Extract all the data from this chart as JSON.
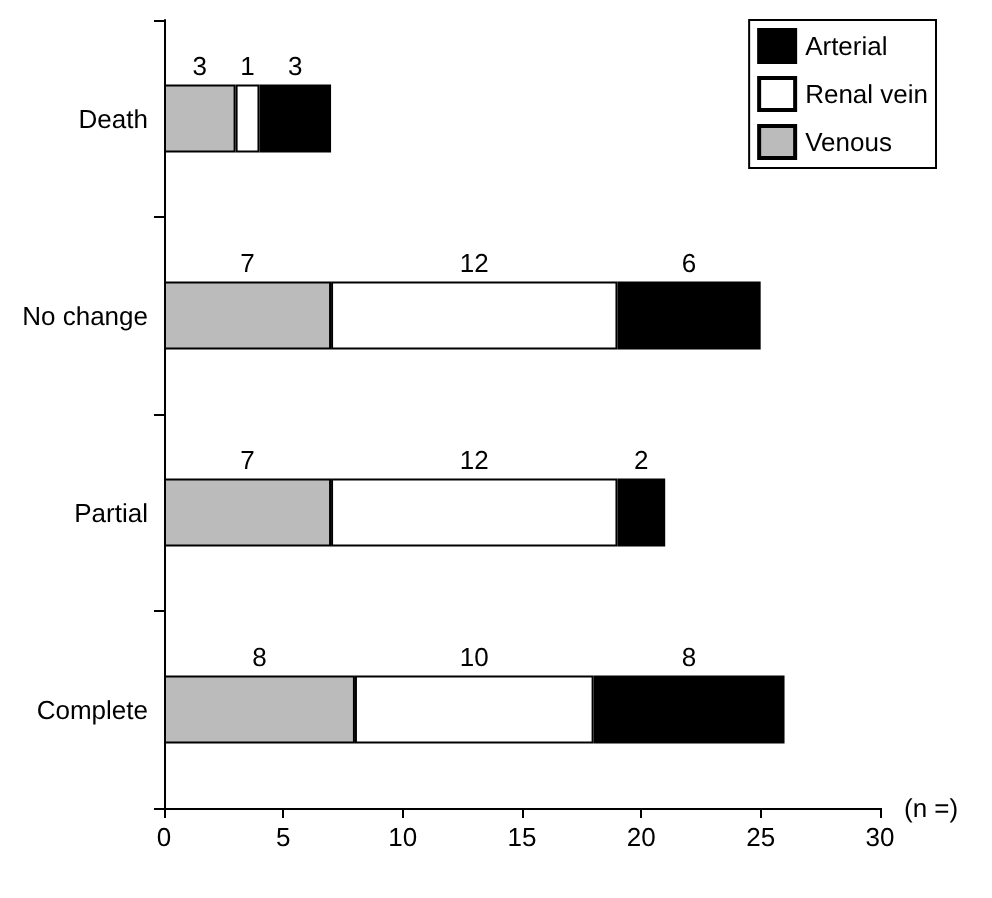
{
  "chart_data": {
    "type": "bar",
    "orientation": "horizontal",
    "stacked": true,
    "data_labels": true,
    "legend": "top right",
    "xlabel": "(n =)",
    "categories": [
      "Death",
      "No change",
      "Partial",
      "Complete"
    ],
    "series": [
      {
        "name": "Venous",
        "color": "#bbbbbb",
        "values": [
          3,
          7,
          7,
          8
        ]
      },
      {
        "name": "Renal vein",
        "color": "#ffffff",
        "values": [
          1,
          12,
          12,
          10
        ]
      },
      {
        "name": "Arterial",
        "color": "#000000",
        "values": [
          3,
          6,
          2,
          8
        ]
      }
    ],
    "xlim": [
      0,
      30
    ],
    "xticks": [
      0,
      5,
      10,
      15,
      20,
      25,
      30
    ]
  }
}
